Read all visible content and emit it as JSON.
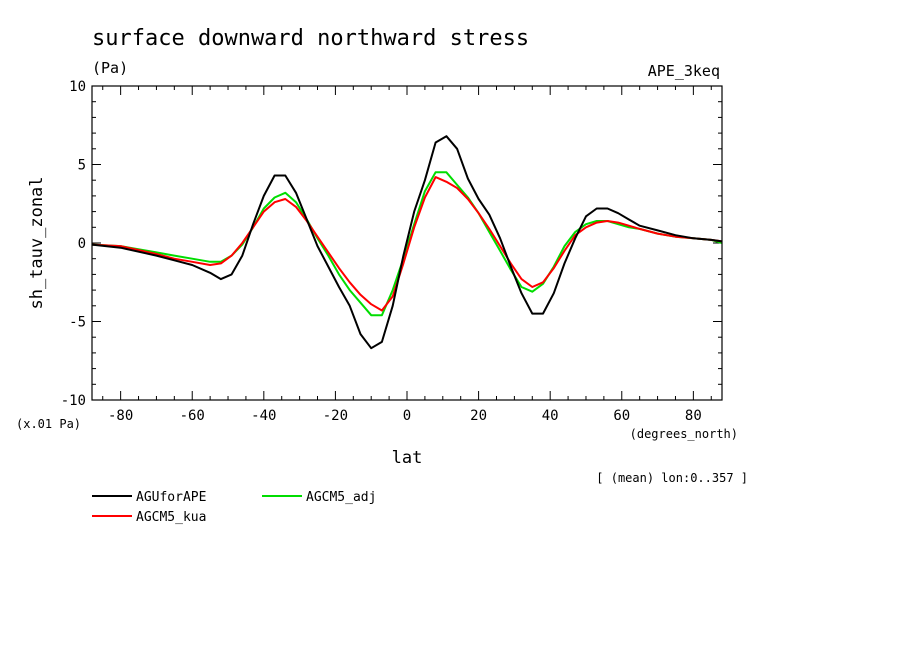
{
  "chart_data": {
    "type": "line",
    "title": "surface downward northward stress",
    "units": "(Pa)",
    "experiment": "APE_3keq",
    "ylabel": "sh_tauv_zonal",
    "xlabel": "lat",
    "xunits": "(degrees_north)",
    "yscale_note": "(x.01 Pa)",
    "mean_note": "[ (mean) lon:0..357 ]",
    "xlim": [
      -88,
      88
    ],
    "ylim": [
      -10,
      10
    ],
    "xticks": [
      -80,
      -60,
      -40,
      -20,
      0,
      20,
      40,
      60,
      80
    ],
    "yticks": [
      -10,
      -5,
      0,
      5,
      10
    ],
    "series": [
      {
        "name": "AGUforAPE",
        "color": "#000000",
        "x": [
          -88,
          -80,
          -70,
          -65,
          -60,
          -55,
          -52,
          -49,
          -46,
          -43,
          -40,
          -37,
          -34,
          -31,
          -28,
          -25,
          -22,
          -19,
          -16,
          -13,
          -10,
          -7,
          -4,
          -1,
          2,
          5,
          8,
          11,
          14,
          17,
          20,
          23,
          26,
          29,
          32,
          35,
          38,
          41,
          44,
          47,
          50,
          53,
          56,
          59,
          62,
          65,
          70,
          75,
          80,
          85,
          88
        ],
        "values": [
          -0.1,
          -0.3,
          -0.8,
          -1.1,
          -1.4,
          -1.9,
          -2.3,
          -2.0,
          -0.8,
          1.2,
          3.0,
          4.3,
          4.3,
          3.2,
          1.5,
          -0.2,
          -1.5,
          -2.8,
          -4.0,
          -5.8,
          -6.7,
          -6.3,
          -4.0,
          -0.8,
          2.0,
          4.0,
          6.4,
          6.8,
          6.0,
          4.1,
          2.8,
          1.8,
          0.3,
          -1.5,
          -3.2,
          -4.5,
          -4.5,
          -3.2,
          -1.3,
          0.3,
          1.7,
          2.2,
          2.2,
          1.9,
          1.5,
          1.1,
          0.8,
          0.5,
          0.3,
          0.2,
          0.1
        ]
      },
      {
        "name": "AGCM5_kua",
        "color": "#ff0000",
        "x": [
          -88,
          -80,
          -70,
          -65,
          -60,
          -55,
          -52,
          -49,
          -46,
          -43,
          -40,
          -37,
          -34,
          -31,
          -28,
          -25,
          -22,
          -19,
          -16,
          -13,
          -10,
          -7,
          -4,
          -1,
          2,
          5,
          8,
          11,
          14,
          17,
          20,
          23,
          26,
          29,
          32,
          35,
          38,
          41,
          44,
          47,
          50,
          53,
          56,
          59,
          62,
          65,
          70,
          75,
          80,
          85,
          88
        ],
        "values": [
          -0.1,
          -0.2,
          -0.7,
          -1.0,
          -1.2,
          -1.4,
          -1.3,
          -0.8,
          0.0,
          1.0,
          2.0,
          2.6,
          2.8,
          2.3,
          1.4,
          0.4,
          -0.6,
          -1.6,
          -2.5,
          -3.3,
          -3.9,
          -4.3,
          -3.4,
          -1.3,
          1.0,
          2.9,
          4.2,
          3.9,
          3.5,
          2.8,
          1.9,
          0.9,
          -0.2,
          -1.3,
          -2.3,
          -2.8,
          -2.5,
          -1.6,
          -0.5,
          0.5,
          1.0,
          1.3,
          1.4,
          1.3,
          1.1,
          0.9,
          0.6,
          0.4,
          0.3,
          0.2,
          0.1
        ]
      },
      {
        "name": "AGCM5_adj",
        "color": "#00dd00",
        "x": [
          -88,
          -80,
          -70,
          -65,
          -60,
          -55,
          -52,
          -49,
          -46,
          -43,
          -40,
          -37,
          -34,
          -31,
          -28,
          -25,
          -22,
          -19,
          -16,
          -13,
          -10,
          -7,
          -4,
          -1,
          2,
          5,
          8,
          11,
          14,
          17,
          20,
          23,
          26,
          29,
          32,
          35,
          38,
          41,
          44,
          47,
          50,
          53,
          56,
          59,
          62,
          65,
          70,
          75,
          80,
          85,
          88
        ],
        "values": [
          -0.1,
          -0.2,
          -0.6,
          -0.8,
          -1.0,
          -1.2,
          -1.2,
          -0.8,
          -0.1,
          1.0,
          2.2,
          2.9,
          3.2,
          2.6,
          1.5,
          0.3,
          -0.8,
          -2.0,
          -3.0,
          -3.8,
          -4.6,
          -4.6,
          -3.0,
          -1.0,
          1.2,
          3.3,
          4.5,
          4.5,
          3.7,
          2.9,
          1.9,
          0.7,
          -0.5,
          -1.7,
          -2.8,
          -3.1,
          -2.6,
          -1.5,
          -0.2,
          0.7,
          1.2,
          1.4,
          1.4,
          1.2,
          1.0,
          0.9,
          0.6,
          0.4,
          0.3,
          0.2,
          0.0
        ]
      }
    ]
  }
}
